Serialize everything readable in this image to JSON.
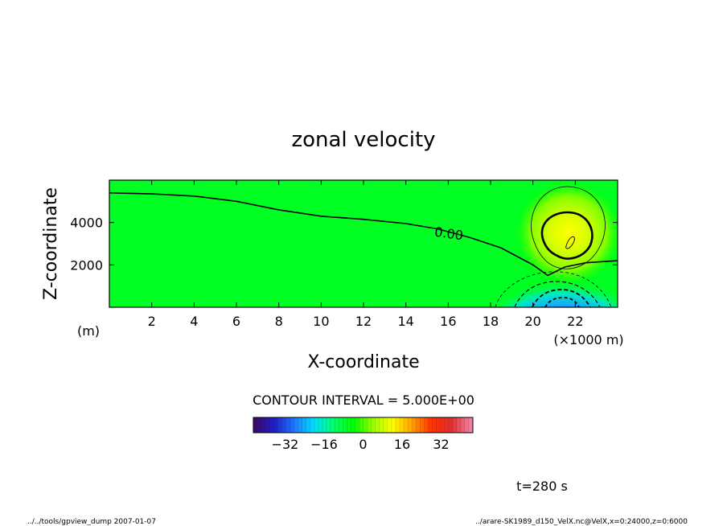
{
  "chart_data": {
    "type": "heatmap",
    "title": "zonal velocity",
    "xlabel": "X-coordinate",
    "ylabel": "Z-coordinate",
    "x_unit": "(×1000 m)",
    "y_unit": "(m)",
    "xlim": [
      0,
      24
    ],
    "ylim": [
      0,
      6000
    ],
    "x_ticks": [
      2,
      4,
      6,
      8,
      10,
      12,
      14,
      16,
      18,
      20,
      22
    ],
    "y_ticks": [
      2000,
      4000
    ],
    "contour_interval_label": "CONTOUR INTERVAL = 5.000E+00",
    "zero_contour_label": "0.00",
    "zero_contour": {
      "x": [
        0,
        2,
        4,
        6,
        8,
        10,
        12,
        14,
        15.5,
        17,
        18.5,
        20,
        20.7,
        21.5,
        22.5,
        24
      ],
      "z": [
        5400,
        5350,
        5250,
        5000,
        4600,
        4300,
        4150,
        3950,
        3700,
        3300,
        2800,
        2000,
        1500,
        1900,
        2100,
        2200
      ]
    },
    "features": [
      {
        "kind": "positive-max",
        "x": 21.5,
        "z": 2800,
        "value": 20
      },
      {
        "kind": "negative-min",
        "x": 21.0,
        "z": 200,
        "value": -28
      }
    ],
    "colorbar": {
      "range": [
        -45,
        45
      ],
      "ticks": [
        -32,
        -16,
        0,
        16,
        32
      ],
      "colors": [
        "#3a0a6a",
        "#2020c8",
        "#1e78ff",
        "#00e0ff",
        "#00ff6a",
        "#00ff00",
        "#9aff00",
        "#ffff00",
        "#ffa000",
        "#ff3000",
        "#e03030",
        "#f080a0"
      ]
    },
    "grid": false,
    "legend": "none"
  },
  "time_label": "t=280 s",
  "footer_left": "../../tools/gpview_dump  2007-01-07",
  "footer_right": "../arare-SK1989_d150_VelX.nc@VelX,x=0:24000,z=0:6000"
}
